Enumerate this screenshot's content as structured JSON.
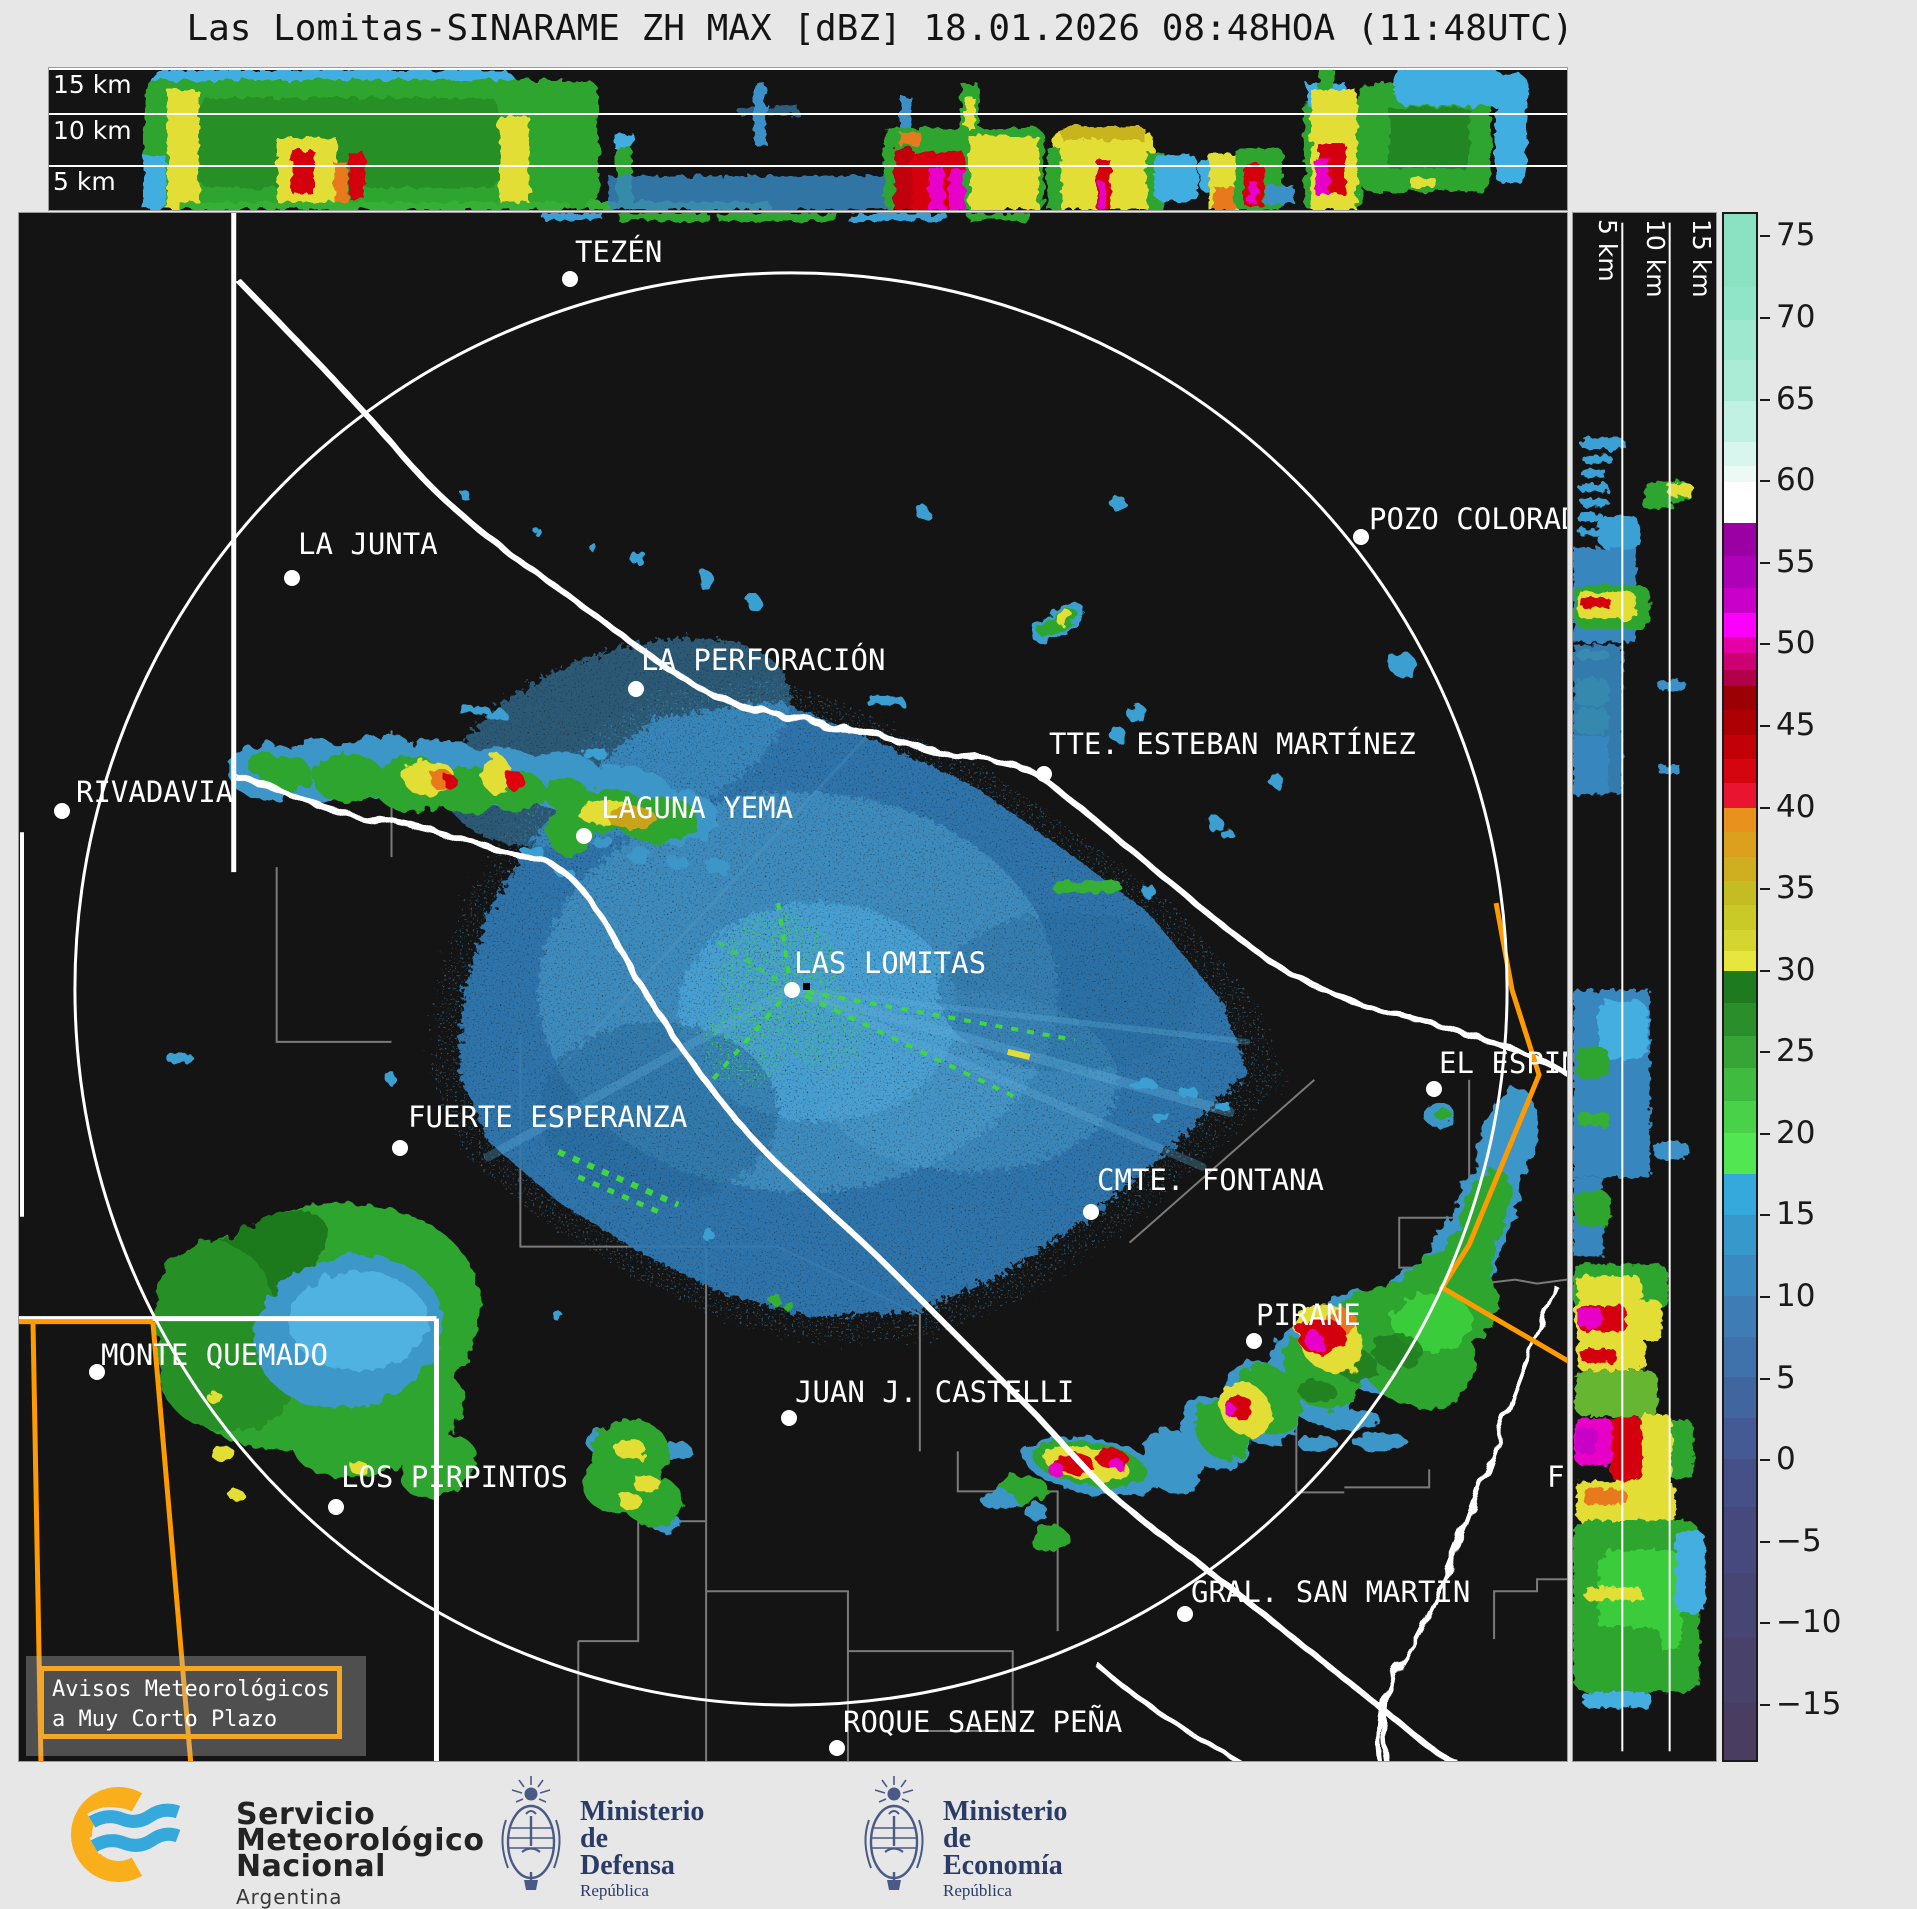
{
  "title": "Las Lomitas-SINARAME ZH MAX [dBZ] 18.01.2026 08:48HOA (11:48UTC)",
  "product": {
    "radar": "Las Lomitas",
    "network": "SINARAME",
    "field": "ZH MAX [dBZ]",
    "date": "18.01.2026",
    "time_local": "08:48HOA",
    "time_utc": "11:48UTC"
  },
  "top_panel": {
    "height_labels": [
      "15 km",
      "10 km",
      "5 km"
    ]
  },
  "right_panel": {
    "height_labels": [
      "5 km",
      "10 km",
      "15 km"
    ]
  },
  "colorbar": {
    "units": "dBZ",
    "top_value": 76.5,
    "bottom_value": -18.5,
    "ticks": [
      {
        "v": 75,
        "label": "75"
      },
      {
        "v": 70,
        "label": "70"
      },
      {
        "v": 65,
        "label": "65"
      },
      {
        "v": 60,
        "label": "60"
      },
      {
        "v": 55,
        "label": "55"
      },
      {
        "v": 50,
        "label": "50"
      },
      {
        "v": 45,
        "label": "45"
      },
      {
        "v": 40,
        "label": "40"
      },
      {
        "v": 35,
        "label": "35"
      },
      {
        "v": 30,
        "label": "30"
      },
      {
        "v": 25,
        "label": "25"
      },
      {
        "v": 20,
        "label": "20"
      },
      {
        "v": 15,
        "label": "15"
      },
      {
        "v": 10,
        "label": "10"
      },
      {
        "v": 5,
        "label": "5"
      },
      {
        "v": 0,
        "label": "0"
      },
      {
        "v": -5,
        "label": "−5"
      },
      {
        "v": -10,
        "label": "−10"
      },
      {
        "v": -15,
        "label": "−15"
      }
    ],
    "segments": [
      {
        "v": 76.5,
        "c": "#8BE2C3"
      },
      {
        "v": 72.0,
        "c": "#90E4C7"
      },
      {
        "v": 70.0,
        "c": "#9EE8CF"
      },
      {
        "v": 67.5,
        "c": "#ABECD7"
      },
      {
        "v": 65.0,
        "c": "#C1F1E2"
      },
      {
        "v": 62.5,
        "c": "#D9F6EE"
      },
      {
        "v": 61.0,
        "c": "#ECFAF6"
      },
      {
        "v": 60.0,
        "c": "#FFFFFF"
      },
      {
        "v": 57.5,
        "c": "#9A00A3"
      },
      {
        "v": 55.5,
        "c": "#AE00B8"
      },
      {
        "v": 53.5,
        "c": "#C900C9"
      },
      {
        "v": 52.0,
        "c": "#FB00FB"
      },
      {
        "v": 50.5,
        "c": "#E300A5"
      },
      {
        "v": 49.5,
        "c": "#CC0072"
      },
      {
        "v": 48.5,
        "c": "#B20048"
      },
      {
        "v": 47.5,
        "c": "#9B0005"
      },
      {
        "v": 46.0,
        "c": "#AD0005"
      },
      {
        "v": 44.5,
        "c": "#C10008"
      },
      {
        "v": 43.0,
        "c": "#D50510"
      },
      {
        "v": 41.5,
        "c": "#E91430"
      },
      {
        "v": 40.0,
        "c": "#E8911C"
      },
      {
        "v": 38.5,
        "c": "#DCA01E"
      },
      {
        "v": 37.0,
        "c": "#CFAE20"
      },
      {
        "v": 35.5,
        "c": "#C3BC22"
      },
      {
        "v": 34.0,
        "c": "#C9C928"
      },
      {
        "v": 32.5,
        "c": "#D5D530"
      },
      {
        "v": 31.2,
        "c": "#E6E63C"
      },
      {
        "v": 30.0,
        "c": "#1E7A1E"
      },
      {
        "v": 28.0,
        "c": "#2A8F2A"
      },
      {
        "v": 26.0,
        "c": "#36A536"
      },
      {
        "v": 24.0,
        "c": "#3FBC3F"
      },
      {
        "v": 22.0,
        "c": "#49D249"
      },
      {
        "v": 20.0,
        "c": "#52E652"
      },
      {
        "v": 17.5,
        "c": "#35A9DC"
      },
      {
        "v": 15.0,
        "c": "#3798CB"
      },
      {
        "v": 12.5,
        "c": "#3A89C0"
      },
      {
        "v": 10.0,
        "c": "#3D7CB5"
      },
      {
        "v": 7.5,
        "c": "#3F71AA"
      },
      {
        "v": 5.0,
        "c": "#41659F"
      },
      {
        "v": 2.5,
        "c": "#435A94"
      },
      {
        "v": 0.0,
        "c": "#455089"
      },
      {
        "v": -3.0,
        "c": "#46497E"
      },
      {
        "v": -7.0,
        "c": "#474573"
      },
      {
        "v": -11.0,
        "c": "#484169"
      },
      {
        "v": -15.0,
        "c": "#493E61"
      }
    ]
  },
  "map": {
    "warning_box": {
      "line1": "Avisos Meteorológicos",
      "line2": "a Muy Corto Plazo"
    },
    "radar_site": "LAS LOMITAS",
    "cities": [
      {
        "name": "TEZÉN",
        "label": [
          556,
          25
        ],
        "dot": [
          543,
          58
        ]
      },
      {
        "name": "LA JUNTA",
        "label": [
          279,
          317
        ],
        "dot": [
          265,
          357
        ]
      },
      {
        "name": "POZO COLORAD",
        "label": [
          1350,
          292
        ],
        "dot": [
          1334,
          316
        ]
      },
      {
        "name": "LA PERFORACIÓN",
        "label": [
          622,
          433
        ],
        "dot": [
          609,
          468
        ]
      },
      {
        "name": "TTE. ESTEBAN MARTÍNEZ",
        "label": [
          1030,
          517
        ],
        "dot": [
          1017,
          553
        ]
      },
      {
        "name": "RIVADAVIA",
        "label": [
          57,
          565
        ],
        "dot": [
          35,
          590
        ]
      },
      {
        "name": "LAGUNA YEMA",
        "label": [
          582,
          581
        ],
        "dot": [
          557,
          615
        ]
      },
      {
        "name": "LAS LOMITAS",
        "label": [
          775,
          736
        ],
        "dot": [
          765,
          769
        ]
      },
      {
        "name": "EL ESPIN",
        "label": [
          1420,
          836
        ],
        "dot": [
          1407,
          868
        ]
      },
      {
        "name": "FUERTE ESPERANZA",
        "label": [
          389,
          890
        ],
        "dot": [
          373,
          927
        ]
      },
      {
        "name": "CMTE. FONTANA",
        "label": [
          1078,
          953
        ],
        "dot": [
          1064,
          991
        ]
      },
      {
        "name": "PIRANE",
        "label": [
          1237,
          1088
        ],
        "dot": [
          1227,
          1120
        ]
      },
      {
        "name": "MONTE QUEMADO",
        "label": [
          82,
          1128
        ],
        "dot": [
          70,
          1151
        ]
      },
      {
        "name": "JUAN J. CASTELLI",
        "label": [
          776,
          1165
        ],
        "dot": [
          762,
          1197
        ]
      },
      {
        "name": "LOS PIRPINTOS",
        "label": [
          322,
          1250
        ],
        "dot": [
          309,
          1286
        ]
      },
      {
        "name": "GRAL. SAN MARTIN",
        "label": [
          1172,
          1365
        ],
        "dot": [
          1158,
          1393
        ]
      },
      {
        "name": "ROQUE SAENZ PEÑA",
        "label": [
          824,
          1495
        ],
        "dot": [
          810,
          1527
        ]
      },
      {
        "name": "F",
        "label": [
          1528,
          1250
        ],
        "dot": null
      }
    ]
  },
  "footer": {
    "smn": {
      "line1": "Servicio",
      "line2": "Meteorológico",
      "line3": "Nacional",
      "country": "Argentina"
    },
    "defensa": {
      "line1": "Ministerio",
      "line2": "de Defensa",
      "line3": "República Argentina"
    },
    "economia": {
      "line1": "Ministerio",
      "line2": "de Economía",
      "line3": "República Argentina"
    }
  },
  "colors": {
    "accent_orange": "#F5A623",
    "warning_orange": "#FF9A00",
    "page_bg": "#E7E7E7",
    "panel_bg": "#141414",
    "label_white": "#FFFFFF",
    "smn_logo_orange": "#F9AE1B",
    "smn_logo_blue": "#35A8DC",
    "ministry_navy": "#2A3B66"
  }
}
